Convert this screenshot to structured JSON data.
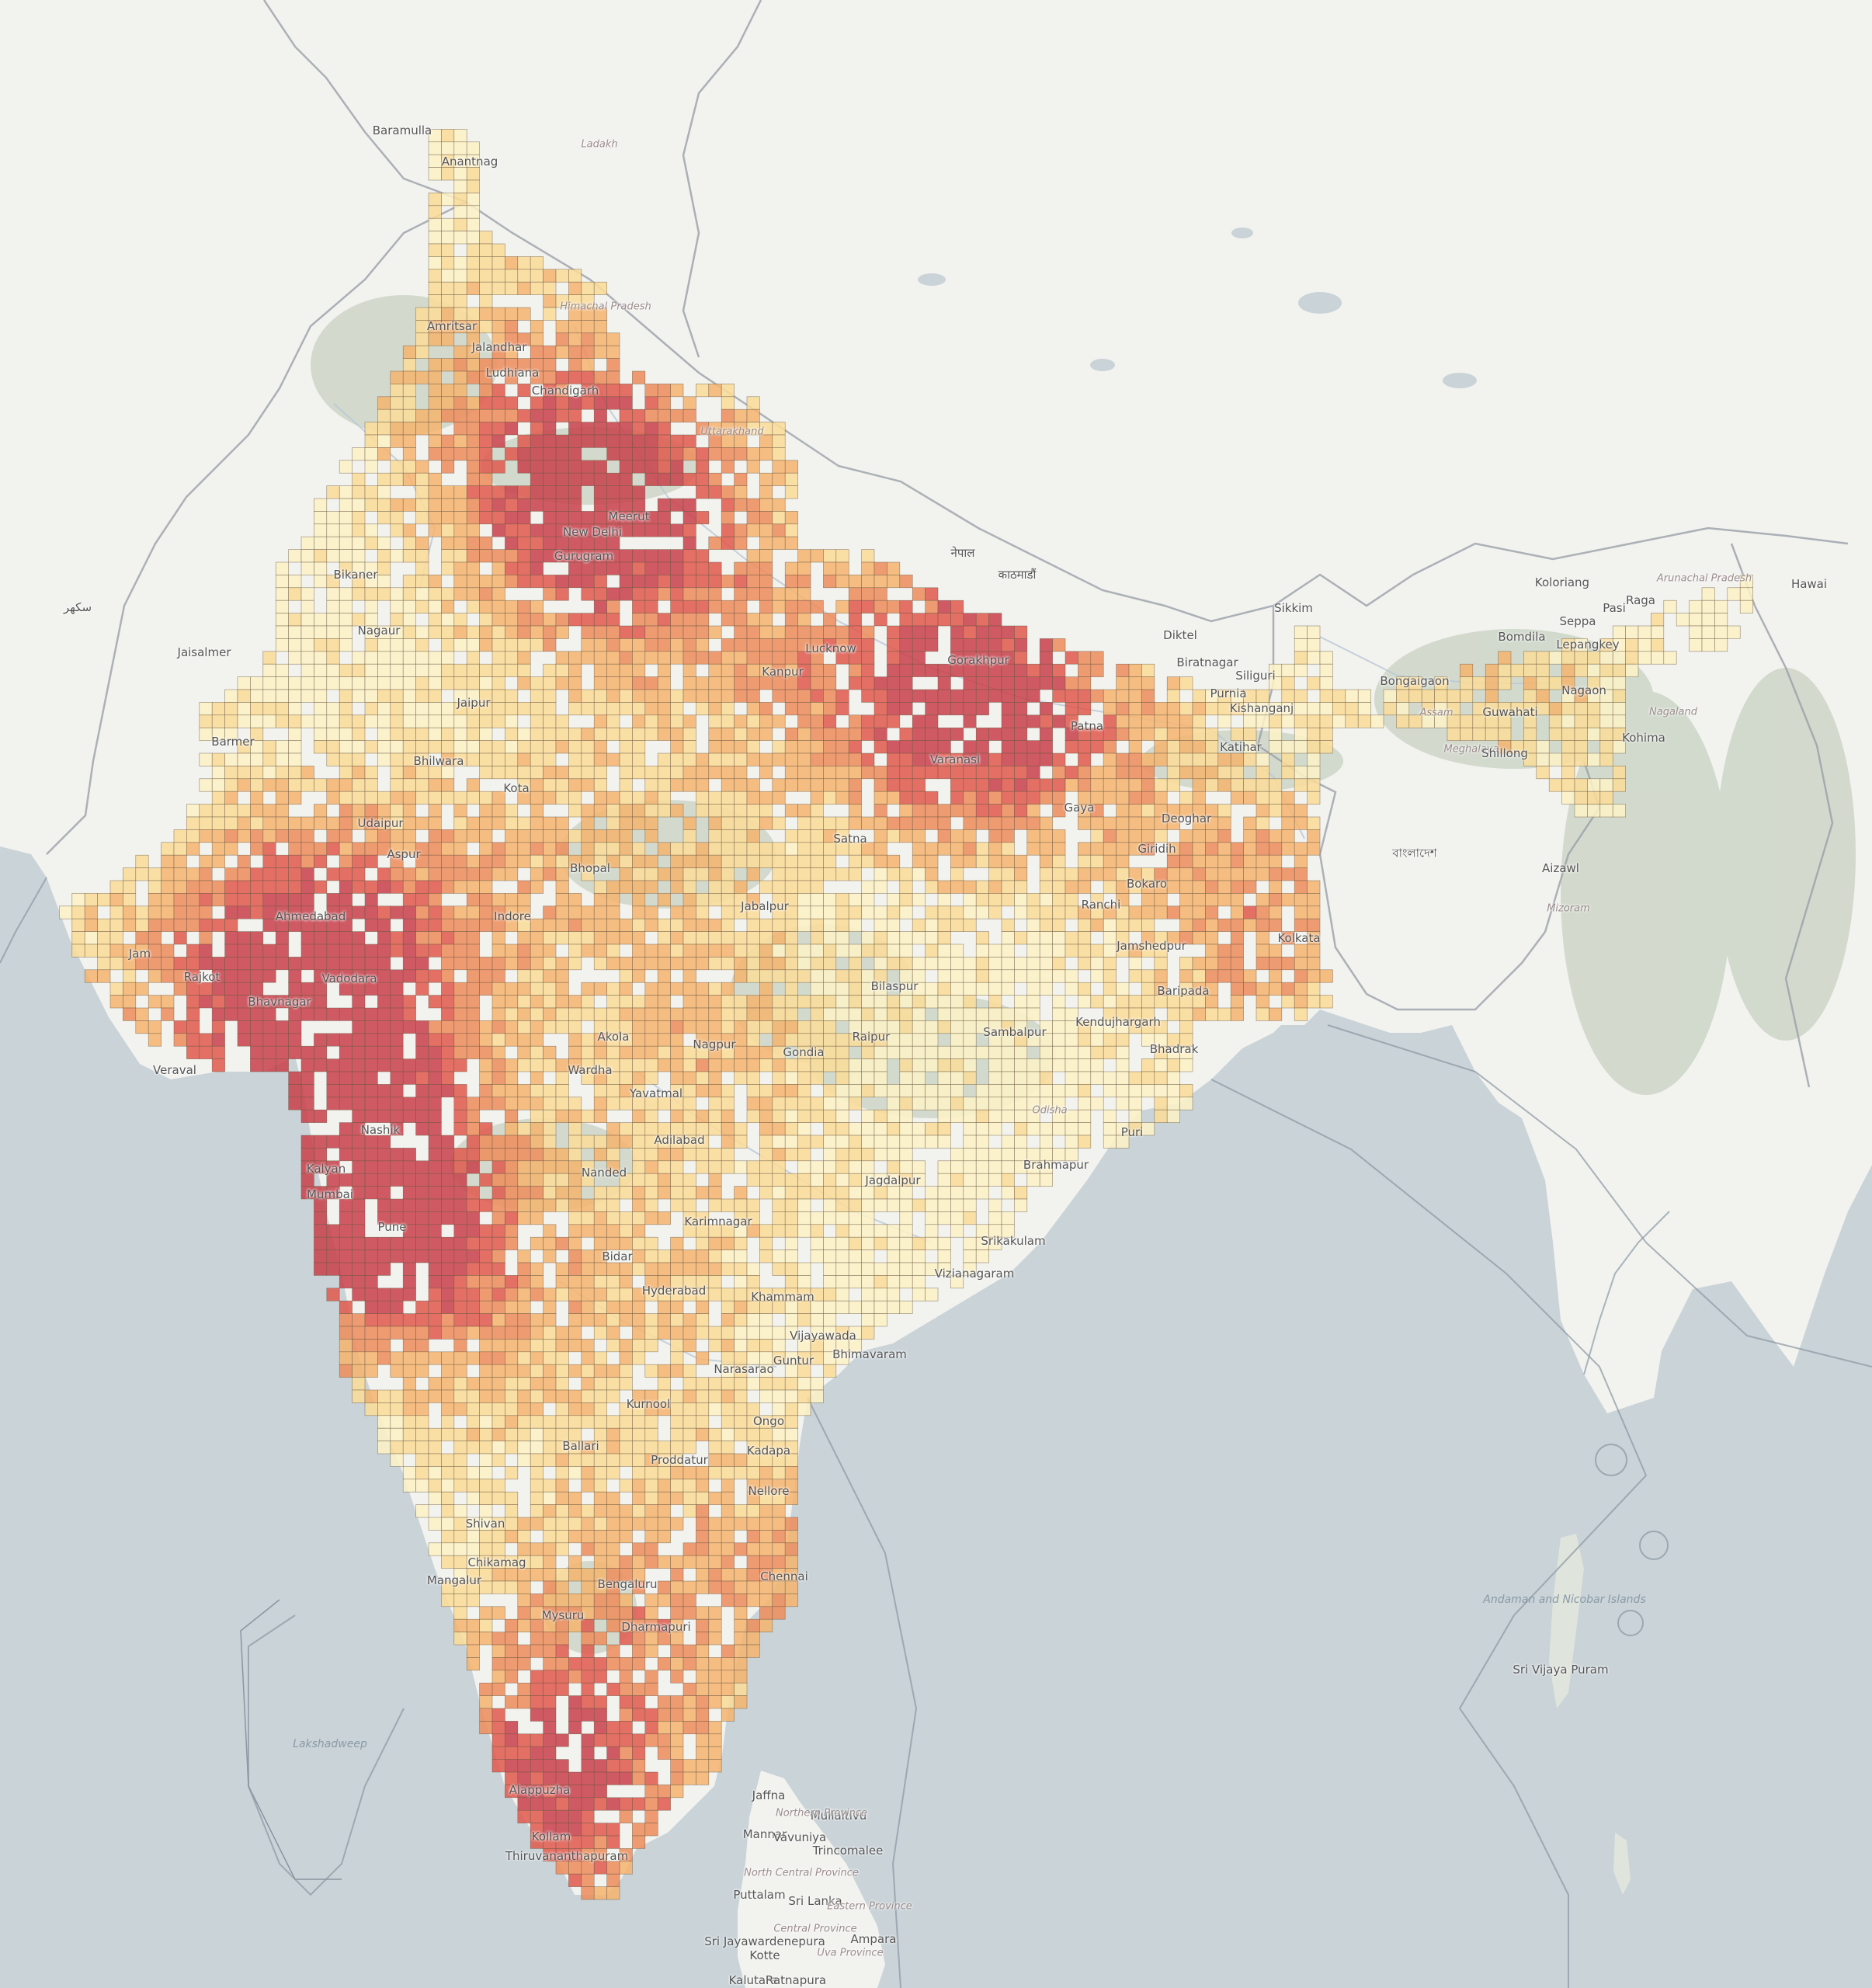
{
  "map": {
    "colors": {
      "land": "#f2f2ef",
      "water": "#c9d3d8",
      "forest": "#c8d2c2",
      "border": "#9aa0a8",
      "cell_stroke": "#6b5a44",
      "ramp": [
        "#fdf2c6",
        "#fbdc98",
        "#f6b46e",
        "#ef8c5a",
        "#e1584c",
        "#c9404a"
      ]
    },
    "labels": {
      "mumbai": "Mumbai",
      "pune": "Pune",
      "nashik": "Nashik",
      "kalyan": "Kalyan",
      "ahmedabad": "Ahmedabad",
      "vadodara": "Vadodara",
      "bhavnagar": "Bhavnagar",
      "veraval": "Veraval",
      "jamnagar": "Jam",
      "rajkot": "Rajkot",
      "nagpur": "Nagpur",
      "akola": "Akola",
      "wardha": "Wardha",
      "yavatmal": "Yavatmal",
      "adilabad": "Adilabad",
      "nanded": "Nanded",
      "karimnagar": "Karimnagar",
      "bidar": "Bidar",
      "hyderabad": "Hyderabad",
      "khammam": "Khammam",
      "vijayawada": "Vijayawada",
      "guntur": "Guntur",
      "bhimavaram": "Bhimavaram",
      "narasaraopet": "Narasarao",
      "ongole": "Ongo",
      "kurnool": "Kurnool",
      "ballari": "Ballari",
      "proddatur": "Proddatur",
      "kadapa": "Kadapa",
      "nellore": "Nellore",
      "shivamogga": "Shivan",
      "chikmagalur": "Chikamag",
      "mangaluru": "Mangalur",
      "bengaluru": "Bengaluru",
      "mysuru": "Mysuru",
      "dharmapuri": "Dharmapuri",
      "chennai": "Chennai",
      "alappuzha": "Alappuzha",
      "kollam": "Kollam",
      "thiruvananthapuram": "Thiruvananthapuram",
      "jaffna": "Jaffna",
      "mannar": "Mannar",
      "vavuniya": "Vavuniya",
      "trincomalee": "Trincomalee",
      "puttalam": "Puttalam",
      "sri_lanka": "Sri Lanka",
      "sri_jayawardenepura": "Sri Jayawardenepura",
      "kotte": "Kotte",
      "ampara": "Ampara",
      "mullaitivu": "Mullaitivu",
      "northern_province": "Northern Province",
      "north_central_province": "North Central Province",
      "eastern_province": "Eastern Province",
      "central_province": "Central Province",
      "uva_province": "Uva Province",
      "kalutara": "Kalutara",
      "ratnapura": "Ratnapura",
      "lakshadweep": "Lakshadweep",
      "andaman": "Andaman and Nicobar Islands",
      "sri_vijaya_puram": "Sri Vijaya Puram",
      "new_delhi": "New Delhi",
      "gurugram": "Gurugram",
      "meerut": "Meerut",
      "amritsar": "Amritsar",
      "jalandhar": "Jalandhar",
      "ludhiana": "Ludhiana",
      "chandigarh": "Chandigarh",
      "anantnag": "Anantnag",
      "baramulla": "Baramulla",
      "ladakh": "Ladakh",
      "himachal": "Himachal Pradesh",
      "uttarakhand": "Uttarakhand",
      "bikaner": "Bikaner",
      "nagaur": "Nagaur",
      "barmer": "Barmer",
      "jaisalmer": "Jaisalmer",
      "bhilwara": "Bhilwara",
      "udaipur": "Udaipur",
      "aspur": "Aspur",
      "jaipur": "Jaipur",
      "kota": "Kota",
      "indore": "Indore",
      "bhopal": "Bhopal",
      "jabalpur": "Jabalpur",
      "satna": "Satna",
      "kanpur": "Kanpur",
      "lucknow": "Lucknow",
      "gorakhpur": "Gorakhpur",
      "varanasi": "Varanasi",
      "gaya": "Gaya",
      "patna": "Patna",
      "purnia": "Purnia",
      "katihar": "Katihar",
      "kishanganj": "Kishanganj",
      "deoghar": "Deoghar",
      "giridih": "Giridih",
      "ranchi": "Ranchi",
      "bokaro": "Bokaro",
      "jamshedpur": "Jamshedpur",
      "baripada": "Baripada",
      "kendujhargarh": "Kendujhargarh",
      "sambalpur": "Sambalpur",
      "bhadrak": "Bhadrak",
      "odisha": "Odisha",
      "puri": "Puri",
      "brahmapur": "Brahmapur",
      "jagdalpur": "Jagdalpur",
      "raipur": "Raipur",
      "bilaspur": "Bilaspur",
      "gondia": "Gondia",
      "srikakulam": "Srikakulam",
      "vizianagaram": "Vizianagaram",
      "kolkata": "Kolkata",
      "siliguri": "Siliguri",
      "sikkim": "Sikkim",
      "bongaigaon": "Bongaigaon",
      "guwahati": "Guwahati",
      "nagaon": "Nagaon",
      "assam": "Assam",
      "meghalaya": "Meghalaya",
      "shillong": "Shillong",
      "nagaland": "Nagaland",
      "kohima": "Kohima",
      "aizawl": "Aizawl",
      "mizoram": "Mizoram",
      "lepangkey": "Lepangkey",
      "seppa": "Seppa",
      "bomdila": "Bomdila",
      "kolortang": "Koloriang",
      "raga": "Raga",
      "pasi": "Pasi",
      "arunachal": "Arunachal Pradesh",
      "hawai": "Hawai",
      "diktel": "Diktel",
      "biratnagar": "Biratnagar",
      "nepal": "नेपाल",
      "bangladesh": "বাংলাদেশ",
      "pakistan_city1": "سکھر",
      "kathmandu_area": "काठमाडौं"
    }
  },
  "chart_data": {
    "type": "heatmap",
    "title": "",
    "xlabel": "",
    "ylabel": "",
    "value_scale": "density class 0–5 (light yellow to dark red)",
    "grid": true,
    "legend": "none"
  }
}
